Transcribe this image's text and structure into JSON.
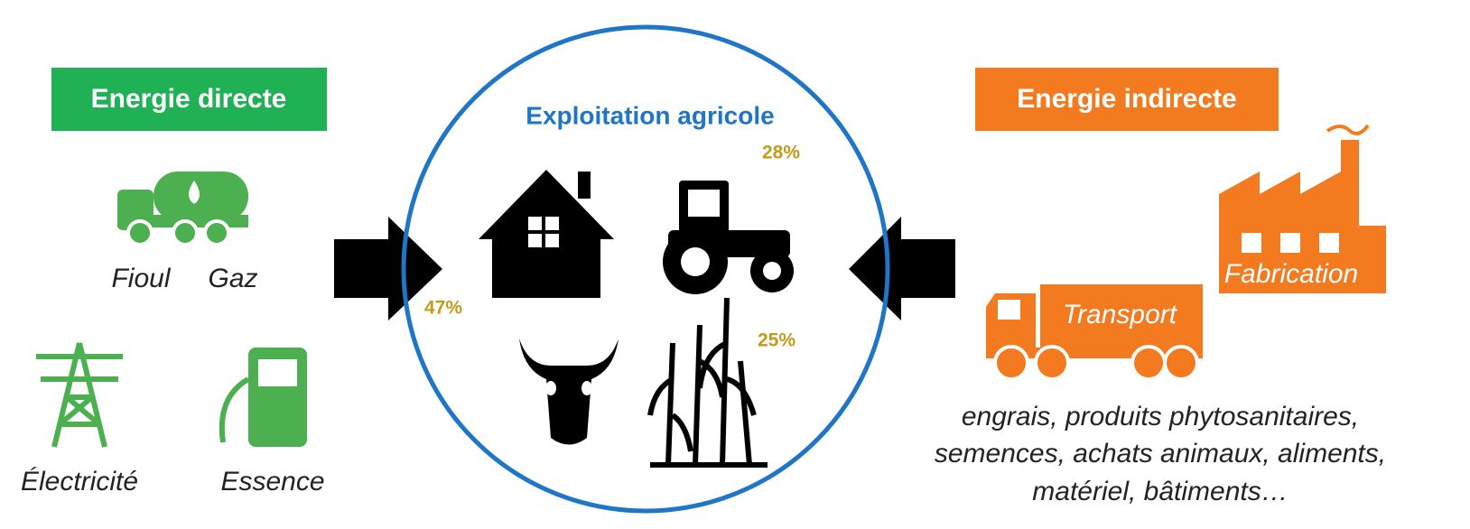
{
  "left": {
    "title": "Energie directe",
    "sources": [
      "Fioul",
      "Gaz",
      "Électricité",
      "Essence"
    ]
  },
  "center": {
    "title": "Exploitation agricole",
    "shares": [
      "28%",
      "47%",
      "25%"
    ]
  },
  "right": {
    "title": "Energie indirecte",
    "labels": [
      "Transport",
      "Fabrication"
    ],
    "description": [
      "engrais, produits phytosanitaires,",
      "semences, achats animaux, aliments,",
      "matériel, bâtiments…"
    ]
  }
}
